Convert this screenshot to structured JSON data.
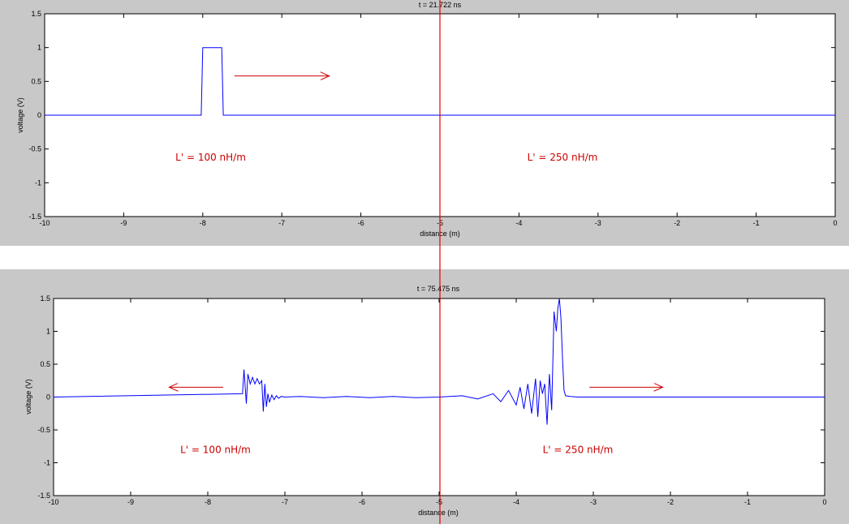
{
  "chart_data": [
    {
      "type": "line",
      "title": "t = 21.722 ns",
      "xlabel": "distance (m)",
      "ylabel": "voltage (V)",
      "xlim": [
        -10,
        0
      ],
      "ylim": [
        -1.5,
        1.5
      ],
      "xticks": [
        -10,
        -9,
        -8,
        -7,
        -6,
        -5,
        -4,
        -3,
        -2,
        -1,
        0
      ],
      "yticks": [
        1.5,
        1,
        0.5,
        0,
        -0.5,
        -1,
        -1.5
      ],
      "grid": false,
      "series": [
        {
          "color": "#0000ff",
          "x": [
            -10,
            -8.02,
            -8.0,
            -7.76,
            -7.74,
            0
          ],
          "y": [
            0,
            0,
            1,
            1,
            0,
            0
          ]
        }
      ],
      "boundary_x": -5,
      "annotations": [
        {
          "text": "L' = 100 nH/m",
          "x": -7.9,
          "y": -0.67
        },
        {
          "text": "L' = 250 nH/m",
          "x": -3.45,
          "y": -0.67
        }
      ],
      "arrows": [
        {
          "from_x": -7.6,
          "to_x": -6.4,
          "y": 0.58,
          "direction": "right"
        }
      ]
    },
    {
      "type": "line",
      "title": "t = 75.475 ns",
      "xlabel": "distance (m)",
      "ylabel": "voltage (V)",
      "xlim": [
        -10,
        0
      ],
      "ylim": [
        -1.5,
        1.5
      ],
      "xticks": [
        -10,
        -9,
        -8,
        -7,
        -6,
        -5,
        -4,
        -3,
        -2,
        -1,
        0
      ],
      "yticks": [
        1.5,
        1,
        0.5,
        0,
        -0.5,
        -1,
        -1.5
      ],
      "grid": false,
      "series": [
        {
          "color": "#0000ff",
          "x": [
            -10,
            -7.55,
            -7.53,
            -7.5,
            -7.48,
            -7.45,
            -7.42,
            -7.39,
            -7.36,
            -7.33,
            -7.3,
            -7.28,
            -7.26,
            -7.24,
            -7.22,
            -7.2,
            -7.17,
            -7.14,
            -7.11,
            -7.08,
            -7.05,
            -7.0,
            -6.8,
            -6.5,
            -6.2,
            -5.9,
            -5.6,
            -5.3,
            -5.0,
            -4.7,
            -4.5,
            -4.3,
            -4.2,
            -4.1,
            -4.0,
            -3.95,
            -3.9,
            -3.85,
            -3.8,
            -3.75,
            -3.72,
            -3.69,
            -3.66,
            -3.63,
            -3.6,
            -3.57,
            -3.54,
            -3.51,
            -3.48,
            -3.46,
            -3.44,
            -3.42,
            -3.4,
            -3.38,
            -3.36,
            -3.3,
            -3.2,
            -3.0,
            0
          ],
          "y": [
            0,
            0.05,
            0.42,
            -0.1,
            0.35,
            0.2,
            0.3,
            0.2,
            0.28,
            0.2,
            0.25,
            -0.22,
            0.2,
            -0.15,
            0.05,
            -0.08,
            0.03,
            -0.04,
            0.02,
            -0.02,
            0.01,
            0.0,
            0.01,
            -0.01,
            0.01,
            -0.01,
            0.01,
            -0.01,
            0.0,
            0.02,
            -0.03,
            0.05,
            -0.07,
            0.1,
            -0.12,
            0.15,
            -0.18,
            0.2,
            -0.25,
            0.28,
            -0.3,
            0.25,
            0.05,
            0.2,
            -0.42,
            0.35,
            -0.2,
            1.3,
            1.0,
            1.35,
            1.5,
            1.2,
            0.6,
            0.1,
            0.02,
            0.01,
            0.0,
            0.0,
            0
          ]
        }
      ],
      "boundary_x": -5,
      "annotations": [
        {
          "text": "L' = 100 nH/m",
          "x": -7.9,
          "y": -0.85
        },
        {
          "text": "L' = 250 nH/m",
          "x": -3.2,
          "y": -0.85
        }
      ],
      "arrows": [
        {
          "from_x": -7.8,
          "to_x": -8.5,
          "y": 0.15,
          "direction": "left"
        },
        {
          "from_x": -3.05,
          "to_x": -2.1,
          "y": 0.15,
          "direction": "right"
        }
      ]
    }
  ]
}
